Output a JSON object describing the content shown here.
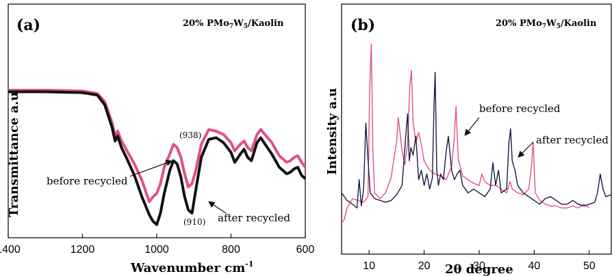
{
  "chart_data": [
    {
      "type": "line",
      "panel": "(a)",
      "title_parts": [
        "20% PMo",
        "7",
        "W",
        "5",
        "/Kaolin"
      ],
      "xlabel": "Wavenumber cm",
      "xlabel_sup": "-1",
      "ylabel": "Transmittance a.u",
      "xlim": [
        1400,
        600
      ],
      "ylim": [
        0,
        100
      ],
      "x_reversed": true,
      "xticks": [
        1400,
        1200,
        1000,
        800,
        600
      ],
      "grid": false,
      "series": [
        {
          "name": "before recycled",
          "color": "#e0508a",
          "x": [
            1400,
            1300,
            1200,
            1160,
            1140,
            1120,
            1112,
            1105,
            1095,
            1080,
            1060,
            1040,
            1020,
            1010,
            1000,
            990,
            980,
            965,
            955,
            945,
            935,
            925,
            915,
            905,
            895,
            880,
            860,
            840,
            820,
            800,
            790,
            775,
            765,
            755,
            745,
            730,
            720,
            705,
            690,
            670,
            650,
            640,
            630,
            620,
            610,
            600
          ],
          "y": [
            85,
            85,
            84.5,
            83,
            78,
            65,
            57,
            60,
            54,
            48,
            40,
            30,
            17,
            20,
            22,
            28,
            38,
            46,
            52,
            50,
            44,
            34,
            26,
            28,
            36,
            52,
            61,
            60,
            58,
            53,
            48,
            52,
            54,
            50,
            48,
            58,
            61,
            57,
            53,
            45,
            41,
            42,
            44,
            45,
            41,
            38
          ]
        },
        {
          "name": "after recycled",
          "color": "#111111",
          "x": [
            1400,
            1300,
            1200,
            1160,
            1140,
            1120,
            1112,
            1105,
            1095,
            1080,
            1060,
            1040,
            1020,
            1010,
            1000,
            990,
            980,
            965,
            955,
            945,
            935,
            925,
            915,
            905,
            895,
            880,
            860,
            840,
            820,
            800,
            790,
            775,
            765,
            755,
            745,
            730,
            720,
            705,
            690,
            670,
            650,
            640,
            630,
            620,
            610,
            600
          ],
          "y": [
            84,
            84,
            83.5,
            82,
            76,
            62,
            54,
            57,
            50,
            43,
            33,
            20,
            9,
            5,
            3,
            10,
            22,
            36,
            42,
            40,
            32,
            20,
            12,
            10,
            24,
            44,
            55,
            56,
            53,
            47,
            41,
            46,
            49,
            44,
            42,
            53,
            56,
            51,
            46,
            38,
            34,
            35,
            37,
            38,
            33,
            31
          ]
        }
      ],
      "annotations": [
        "(938)",
        "(910)",
        "before recycled",
        "after recycled"
      ]
    },
    {
      "type": "line",
      "panel": "(b)",
      "title_parts": [
        "20% PMo",
        "7",
        "W",
        "5",
        "/Kaolin"
      ],
      "xlabel": "2θ degree",
      "ylabel": "Intensity a.u",
      "xlim": [
        5,
        54
      ],
      "ylim": [
        0,
        100
      ],
      "xticks": [
        10,
        20,
        30,
        40,
        50
      ],
      "grid": false,
      "series": [
        {
          "name": "before recycled",
          "color": "#e0508a",
          "x": [
            5,
            5.5,
            6,
            7,
            8,
            9,
            9.8,
            10.1,
            10.4,
            10.7,
            11,
            12,
            13,
            14,
            14.5,
            15,
            15.3,
            15.7,
            16,
            16.5,
            17,
            17.4,
            17.7,
            18,
            18.5,
            19,
            19.4,
            20,
            21,
            22,
            23,
            24,
            25,
            25.5,
            25.8,
            26.2,
            27,
            28,
            29,
            30,
            30.5,
            31,
            32,
            33,
            34,
            35,
            35.6,
            36,
            37,
            38,
            39,
            39.5,
            39.8,
            40.2,
            41,
            42,
            43,
            44,
            45,
            46,
            47,
            48,
            49,
            50
          ],
          "y": [
            2,
            4,
            10,
            15,
            14,
            13,
            16,
            72,
            97,
            40,
            18,
            15,
            18,
            26,
            36,
            45,
            58,
            48,
            40,
            33,
            45,
            75,
            83,
            55,
            45,
            50,
            45,
            35,
            30,
            28,
            27,
            25,
            32,
            48,
            64,
            36,
            27,
            25,
            23,
            22,
            28,
            24,
            22,
            22,
            20,
            18,
            24,
            20,
            18,
            17,
            20,
            32,
            45,
            18,
            14,
            12,
            11,
            11,
            10,
            10,
            11,
            10,
            12,
            10
          ]
        },
        {
          "name": "after recycled",
          "color": "#1a1840",
          "x": [
            5,
            6,
            7,
            7.8,
            8.2,
            8.6,
            9,
            9.4,
            9.8,
            10.2,
            11,
            12,
            13,
            14,
            15,
            16,
            16.6,
            17,
            17.3,
            17.6,
            18,
            18.5,
            19,
            19.5,
            20,
            20.5,
            21,
            21.5,
            21.8,
            22,
            22.3,
            22.6,
            23,
            23.5,
            24,
            24.4,
            25,
            25.5,
            26,
            26.5,
            27,
            28,
            29,
            30,
            31,
            32,
            32.5,
            33,
            33.5,
            34,
            35,
            35.4,
            35.7,
            36,
            36.5,
            37,
            38,
            39,
            40,
            41,
            42,
            43,
            44,
            45,
            46,
            47,
            48,
            49,
            50,
            51,
            51.5,
            52,
            52.5,
            53,
            54
          ],
          "y": [
            18,
            14,
            12,
            10,
            25,
            11,
            20,
            55,
            36,
            18,
            15,
            14,
            13,
            14,
            17,
            22,
            46,
            60,
            35,
            42,
            38,
            48,
            25,
            30,
            22,
            28,
            20,
            26,
            65,
            82,
            30,
            22,
            28,
            25,
            40,
            48,
            30,
            25,
            28,
            30,
            22,
            18,
            20,
            18,
            16,
            20,
            34,
            22,
            30,
            18,
            20,
            44,
            52,
            35,
            30,
            22,
            18,
            16,
            14,
            12,
            15,
            16,
            14,
            12,
            12,
            14,
            12,
            11,
            12,
            13,
            18,
            28,
            20,
            16,
            17
          ]
        }
      ],
      "annotations": [
        "before recycled",
        "after recycled"
      ]
    }
  ]
}
